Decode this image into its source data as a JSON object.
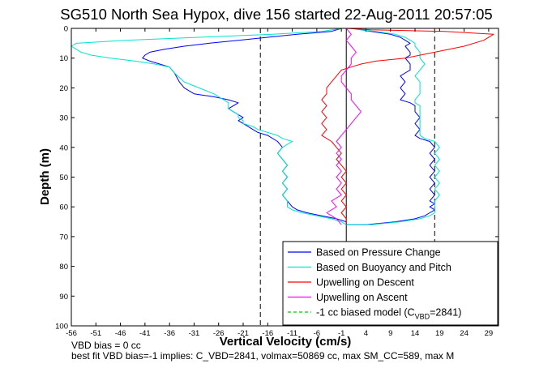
{
  "chart_data": {
    "type": "line",
    "title": "SG510 North Sea Hypox, dive 156 started 22-Aug-2011 20:57:05",
    "xlabel": "Vertical Velocity (cm/s)",
    "ylabel": "Depth (m)",
    "xlim": [
      -56,
      31
    ],
    "ylim": [
      0,
      100
    ],
    "y_reversed": true,
    "grid": false,
    "legend_position": "bottom-right",
    "xticks": [
      -56,
      -51,
      -46,
      -41,
      -36,
      -31,
      -26,
      -21,
      -16,
      -11,
      -6,
      -1,
      4,
      9,
      14,
      19,
      24,
      29
    ],
    "yticks": [
      0,
      10,
      20,
      30,
      40,
      50,
      60,
      70,
      80,
      90,
      100
    ],
    "reference_lines": [
      {
        "x": -17.5,
        "style": "dashed",
        "color": "#000000"
      },
      {
        "x": 0,
        "style": "solid",
        "color": "#000000"
      },
      {
        "x": 18,
        "style": "dashed",
        "color": "#000000"
      }
    ],
    "series": [
      {
        "name": "Based on Pressure Change",
        "color": "#0000ff",
        "points": [
          [
            -1,
            0
          ],
          [
            -3,
            1
          ],
          [
            -10,
            2
          ],
          [
            -16,
            3
          ],
          [
            -22,
            4
          ],
          [
            -28,
            5
          ],
          [
            -33,
            6
          ],
          [
            -37,
            7
          ],
          [
            -40,
            8
          ],
          [
            -41,
            9
          ],
          [
            -41.5,
            10
          ],
          [
            -40,
            11
          ],
          [
            -38,
            12
          ],
          [
            -36,
            13
          ],
          [
            -35,
            15
          ],
          [
            -34,
            18
          ],
          [
            -33,
            20
          ],
          [
            -31,
            22
          ],
          [
            -27,
            23
          ],
          [
            -24,
            24
          ],
          [
            -22,
            25
          ],
          [
            -23,
            26
          ],
          [
            -24,
            27
          ],
          [
            -23,
            28
          ],
          [
            -22,
            29
          ],
          [
            -21,
            30
          ],
          [
            -22,
            31
          ],
          [
            -21,
            32
          ],
          [
            -20,
            33
          ],
          [
            -19,
            34
          ],
          [
            -18,
            35
          ],
          [
            -16,
            36
          ],
          [
            -14,
            38
          ],
          [
            -13,
            40
          ],
          [
            -14,
            42
          ],
          [
            -13,
            44
          ],
          [
            -12,
            46
          ],
          [
            -13,
            48
          ],
          [
            -12,
            50
          ],
          [
            -13,
            52
          ],
          [
            -12,
            54
          ],
          [
            -13,
            56
          ],
          [
            -12,
            58
          ],
          [
            -11,
            60
          ],
          [
            -10,
            61
          ],
          [
            -8,
            62
          ],
          [
            -5,
            63
          ],
          [
            -2,
            64
          ],
          [
            0,
            65
          ],
          [
            0,
            66
          ],
          [
            4,
            66
          ],
          [
            10,
            65
          ],
          [
            14,
            64
          ],
          [
            16,
            63
          ],
          [
            17,
            62
          ],
          [
            18,
            61
          ],
          [
            17,
            60
          ],
          [
            18,
            59
          ],
          [
            17,
            58
          ],
          [
            18,
            56
          ],
          [
            17,
            54
          ],
          [
            18,
            52
          ],
          [
            17,
            50
          ],
          [
            18,
            48
          ],
          [
            17,
            46
          ],
          [
            18,
            44
          ],
          [
            17,
            42
          ],
          [
            18,
            40
          ],
          [
            17,
            38
          ],
          [
            15,
            37
          ],
          [
            14,
            36
          ],
          [
            15,
            34
          ],
          [
            14,
            32
          ],
          [
            15,
            30
          ],
          [
            14,
            28
          ],
          [
            14,
            26
          ],
          [
            13,
            25
          ],
          [
            11,
            24
          ],
          [
            12,
            22
          ],
          [
            11,
            20
          ],
          [
            12,
            18
          ],
          [
            11,
            16
          ],
          [
            12,
            15
          ],
          [
            13,
            14
          ],
          [
            13,
            12
          ],
          [
            12,
            10
          ],
          [
            13,
            9
          ],
          [
            13,
            8
          ],
          [
            12,
            6
          ],
          [
            13,
            5
          ],
          [
            12,
            4
          ],
          [
            11,
            3
          ],
          [
            9,
            2
          ],
          [
            5,
            1
          ],
          [
            3,
            0.5
          ],
          [
            1,
            0
          ]
        ]
      },
      {
        "name": "Based on Buoyancy and Pitch",
        "color": "#00e5cc",
        "points": [
          [
            -1,
            0
          ],
          [
            -5,
            1
          ],
          [
            -15,
            2
          ],
          [
            -30,
            3
          ],
          [
            -45,
            4
          ],
          [
            -55,
            5
          ],
          [
            -56,
            6
          ],
          [
            -55,
            7
          ],
          [
            -54,
            8
          ],
          [
            -52,
            9
          ],
          [
            -48,
            10
          ],
          [
            -43,
            11
          ],
          [
            -39,
            12
          ],
          [
            -36,
            13
          ],
          [
            -35,
            15
          ],
          [
            -33,
            18
          ],
          [
            -30,
            20
          ],
          [
            -27,
            22
          ],
          [
            -25,
            24
          ],
          [
            -24,
            25
          ],
          [
            -24,
            27
          ],
          [
            -23,
            28
          ],
          [
            -22,
            29
          ],
          [
            -22,
            30
          ],
          [
            -21,
            31
          ],
          [
            -21,
            32
          ],
          [
            -19,
            33
          ],
          [
            -18,
            34
          ],
          [
            -16,
            35
          ],
          [
            -14,
            36
          ],
          [
            -13,
            37
          ],
          [
            -11,
            38
          ],
          [
            -12,
            39
          ],
          [
            -13,
            40
          ],
          [
            -14,
            42
          ],
          [
            -13,
            44
          ],
          [
            -12,
            46
          ],
          [
            -13,
            48
          ],
          [
            -12,
            50
          ],
          [
            -13,
            52
          ],
          [
            -12,
            54
          ],
          [
            -13,
            56
          ],
          [
            -12,
            58
          ],
          [
            -12,
            60
          ],
          [
            -11,
            61
          ],
          [
            -9,
            62
          ],
          [
            -6,
            63
          ],
          [
            -3,
            64
          ],
          [
            -1,
            65
          ],
          [
            0,
            66
          ],
          [
            5,
            66
          ],
          [
            11,
            65
          ],
          [
            15,
            64
          ],
          [
            17,
            63
          ],
          [
            18,
            62
          ],
          [
            18,
            60
          ],
          [
            18,
            58
          ],
          [
            19,
            56
          ],
          [
            18,
            54
          ],
          [
            19,
            52
          ],
          [
            18,
            50
          ],
          [
            19,
            48
          ],
          [
            18,
            46
          ],
          [
            19,
            44
          ],
          [
            18,
            42
          ],
          [
            19,
            40
          ],
          [
            18,
            38
          ],
          [
            16,
            37
          ],
          [
            15,
            36
          ],
          [
            15,
            34
          ],
          [
            15,
            32
          ],
          [
            15,
            30
          ],
          [
            15,
            28
          ],
          [
            15,
            26
          ],
          [
            14,
            25
          ],
          [
            14,
            24
          ],
          [
            15,
            22
          ],
          [
            15,
            20
          ],
          [
            15,
            18
          ],
          [
            14,
            16
          ],
          [
            15,
            14
          ],
          [
            16,
            12
          ],
          [
            15,
            10
          ],
          [
            15,
            9
          ],
          [
            15,
            8
          ],
          [
            14,
            6
          ],
          [
            14,
            5
          ],
          [
            13,
            4
          ],
          [
            12,
            3
          ],
          [
            10,
            2
          ],
          [
            6,
            1
          ],
          [
            3,
            0.5
          ],
          [
            1,
            0
          ]
        ]
      },
      {
        "name": "Upwelling on Descent",
        "color": "#ff0000",
        "points": [
          [
            0,
            0
          ],
          [
            5,
            0.5
          ],
          [
            20,
            1
          ],
          [
            30,
            2
          ],
          [
            28,
            4
          ],
          [
            24,
            6
          ],
          [
            18,
            8
          ],
          [
            12,
            10
          ],
          [
            6,
            11
          ],
          [
            3,
            12
          ],
          [
            1,
            13
          ],
          [
            -1,
            14
          ],
          [
            -2,
            16
          ],
          [
            -3,
            18
          ],
          [
            -4,
            20
          ],
          [
            -4,
            22
          ],
          [
            -5,
            24
          ],
          [
            -4,
            26
          ],
          [
            -5,
            28
          ],
          [
            -4,
            30
          ],
          [
            -5,
            32
          ],
          [
            -4,
            34
          ],
          [
            -5,
            36
          ],
          [
            -3,
            38
          ],
          [
            -2,
            40
          ],
          [
            -1,
            42
          ],
          [
            -2,
            44
          ],
          [
            -1,
            46
          ],
          [
            0,
            48
          ],
          [
            -1,
            50
          ],
          [
            0,
            52
          ],
          [
            -1,
            54
          ],
          [
            0,
            56
          ],
          [
            -1,
            58
          ],
          [
            0,
            60
          ],
          [
            -1,
            62
          ],
          [
            0,
            64
          ],
          [
            0,
            66
          ]
        ]
      },
      {
        "name": "Upwelling on Ascent",
        "color": "#ff00ff",
        "points": [
          [
            -1,
            66
          ],
          [
            -2,
            64
          ],
          [
            -3,
            63
          ],
          [
            -4,
            62
          ],
          [
            -2,
            60
          ],
          [
            -3,
            58
          ],
          [
            -1,
            56
          ],
          [
            -2,
            54
          ],
          [
            -1,
            52
          ],
          [
            -2,
            50
          ],
          [
            -1,
            48
          ],
          [
            -2,
            46
          ],
          [
            -1,
            44
          ],
          [
            -2,
            42
          ],
          [
            -1,
            40
          ],
          [
            -2,
            38
          ],
          [
            -1,
            36
          ],
          [
            0,
            34
          ],
          [
            1,
            32
          ],
          [
            2,
            30
          ],
          [
            3,
            28
          ],
          [
            2,
            26
          ],
          [
            1,
            24
          ],
          [
            1,
            22
          ],
          [
            0,
            20
          ],
          [
            -1,
            18
          ],
          [
            -1,
            16
          ],
          [
            0,
            14
          ],
          [
            1,
            12
          ],
          [
            1,
            10
          ],
          [
            2,
            8
          ],
          [
            1,
            6
          ],
          [
            0,
            4
          ],
          [
            1,
            2
          ],
          [
            0,
            0
          ]
        ]
      },
      {
        "name": "-1 cc biased model",
        "color": "#00cc00",
        "dashed": true,
        "points": []
      }
    ]
  },
  "legend": {
    "entries": [
      {
        "label": "Based on Pressure Change",
        "color": "#0000ff",
        "dashed": false
      },
      {
        "label": "Based on Buoyancy and Pitch",
        "color": "#00e5cc",
        "dashed": false
      },
      {
        "label": "Upwelling on Descent",
        "color": "#ff0000",
        "dashed": false
      },
      {
        "label": "Upwelling on Ascent",
        "color": "#ff00ff",
        "dashed": false
      },
      {
        "label": "-1 cc biased model (C",
        "color": "#00cc00",
        "dashed": true,
        "sub": "VBD",
        "suffix": "=2841)"
      }
    ]
  },
  "notes": {
    "vbd_bias": "VBD bias = 0 cc",
    "best_fit": "best fit VBD bias=-1 implies: C_VBD=2841, volmax=50869 cc, max SM_CC=589, max M"
  }
}
